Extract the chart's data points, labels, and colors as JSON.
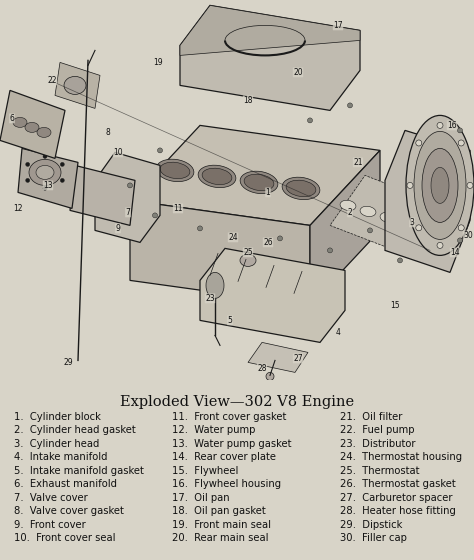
{
  "title": "Exploded View—302 V8 Engine",
  "background_color": "#d8d4c8",
  "parts_col1": [
    "1.  Cylinder block",
    "2.  Cylinder head gasket",
    "3.  Cylinder head",
    "4.  Intake manifold",
    "5.  Intake manifold gasket",
    "6.  Exhaust manifold",
    "7.  Valve cover",
    "8.  Valve cover gasket",
    "9.  Front cover",
    "10.  Front cover seal"
  ],
  "parts_col2": [
    "11.  Front cover gasket",
    "12.  Water pump",
    "13.  Water pump gasket",
    "14.  Rear cover plate",
    "15.  Flywheel",
    "16.  Flywheel housing",
    "17.  Oil pan",
    "18.  Oil pan gasket",
    "19.  Front main seal",
    "20.  Rear main seal"
  ],
  "parts_col3": [
    "21.  Oil filter",
    "22.  Fuel pump",
    "23.  Distributor",
    "24.  Thermostat housing",
    "25.  Thermostat",
    "26.  Thermostat gasket",
    "27.  Carburetor spacer",
    "28.  Heater hose fitting",
    "29.  Dipstick",
    "30.  Filler cap"
  ],
  "title_fontsize": 10.5,
  "parts_fontsize": 7.2,
  "text_color": "#111111",
  "fig_width": 4.74,
  "fig_height": 5.6
}
